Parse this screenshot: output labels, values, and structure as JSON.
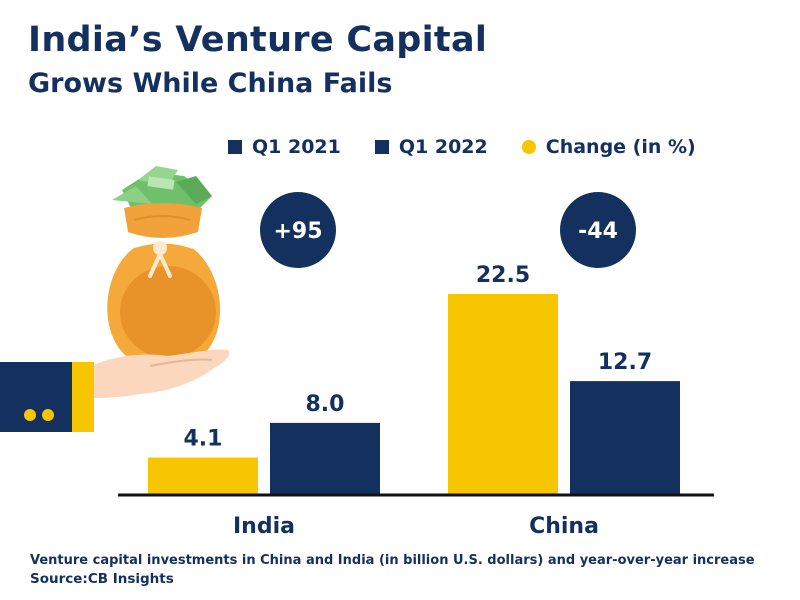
{
  "title": {
    "line1": "India’s Venture Capital",
    "line2": "Grows While China Fails"
  },
  "legend": [
    {
      "label": "Q1 2021",
      "color": "#14305e",
      "shape": "square"
    },
    {
      "label": "Q1 2022",
      "color": "#14305e",
      "shape": "square"
    },
    {
      "label": "Change (in %)",
      "color": "#f7c600",
      "shape": "circle"
    }
  ],
  "chart_data": {
    "type": "bar",
    "categories": [
      "India",
      "China"
    ],
    "series": [
      {
        "name": "Q1 2021",
        "values": [
          4.1,
          22.5
        ],
        "labels": [
          "4.1",
          "22.5"
        ],
        "color": "#f7c600"
      },
      {
        "name": "Q1 2022",
        "values": [
          8.0,
          12.7
        ],
        "labels": [
          "8.0",
          "12.7"
        ],
        "color": "#14305e"
      }
    ],
    "change_percent": [
      95,
      -44
    ],
    "change_labels": [
      "+95",
      "-44"
    ],
    "ylim": [
      0,
      22.5
    ],
    "title": "India’s Venture Capital Grows While China Fails",
    "xlabel": "",
    "ylabel": ""
  },
  "footer": {
    "note": "Venture capital investments in China and India (in billion U.S. dollars) and year-over-year increase",
    "source": "Source:CB Insights"
  },
  "colors": {
    "navy": "#14305e",
    "yellow": "#f7c600",
    "bag_orange": "#f4a93a",
    "money_green": "#7fc97c"
  },
  "illustration": {
    "icon": "money-bag-in-hand-icon"
  }
}
